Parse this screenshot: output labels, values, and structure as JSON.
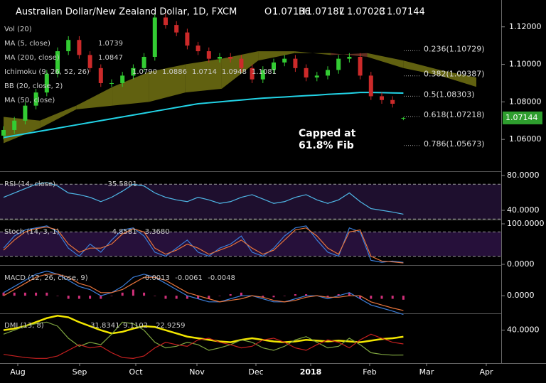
{
  "chart_data": [
    {
      "type": "candlestick",
      "title": "Australian Dollar/New Zealand Dollar, 1D, FXCM",
      "ohlc_labels": [
        "O",
        "H",
        "L",
        "C"
      ],
      "open": [
        1.062,
        1.065,
        1.07,
        1.078,
        1.085,
        1.095,
        1.107,
        1.113,
        1.105,
        1.098,
        1.09,
        1.09,
        1.094,
        1.098,
        1.104,
        1.125,
        1.121,
        1.117,
        1.11,
        1.107,
        1.103,
        1.104,
        1.103,
        1.098,
        1.092,
        1.097,
        1.101,
        1.103,
        1.098,
        1.093,
        1.094,
        1.097,
        1.103,
        1.104,
        1.094,
        1.083,
        1.081,
        1.07136
      ],
      "high": [
        1.067,
        1.072,
        1.08,
        1.087,
        1.097,
        1.109,
        1.115,
        1.115,
        1.107,
        1.1,
        1.092,
        1.096,
        1.1,
        1.106,
        1.127,
        1.127,
        1.123,
        1.119,
        1.112,
        1.109,
        1.106,
        1.106,
        1.105,
        1.1,
        1.099,
        1.103,
        1.105,
        1.105,
        1.1,
        1.096,
        1.099,
        1.105,
        1.106,
        1.106,
        1.096,
        1.085,
        1.083,
        1.07187
      ],
      "low": [
        1.06,
        1.063,
        1.068,
        1.076,
        1.083,
        1.093,
        1.105,
        1.103,
        1.096,
        1.088,
        1.088,
        1.088,
        1.092,
        1.096,
        1.102,
        1.119,
        1.115,
        1.108,
        1.105,
        1.101,
        1.101,
        1.101,
        1.096,
        1.09,
        1.09,
        1.095,
        1.099,
        1.096,
        1.091,
        1.091,
        1.092,
        1.095,
        1.101,
        1.092,
        1.081,
        1.079,
        1.077,
        1.07023
      ],
      "close": [
        1.065,
        1.07,
        1.078,
        1.085,
        1.095,
        1.107,
        1.113,
        1.105,
        1.098,
        1.09,
        1.09,
        1.094,
        1.098,
        1.104,
        1.125,
        1.121,
        1.117,
        1.11,
        1.107,
        1.103,
        1.104,
        1.103,
        1.098,
        1.092,
        1.097,
        1.101,
        1.103,
        1.098,
        1.093,
        1.094,
        1.097,
        1.103,
        1.104,
        1.094,
        1.083,
        1.081,
        1.079,
        1.07144
      ],
      "up_color": "#33cc33",
      "down_color": "#cc2a2a",
      "ylim": [
        1.0434,
        1.1343
      ],
      "yticks": [
        {
          "value": 1.12,
          "label": "1.12000"
        },
        {
          "value": 1.1,
          "label": "1.10000"
        },
        {
          "value": 1.08,
          "label": "1.08000"
        },
        {
          "value": 1.06,
          "label": "1.06000"
        }
      ],
      "indicators": [
        {
          "name": "Vol (20)",
          "values_text": []
        },
        {
          "name": "MA (5, close)",
          "values_text": [
            "1.0739"
          ]
        },
        {
          "name": "MA (200, close)",
          "values_text": [
            "1.0847"
          ]
        },
        {
          "name": "Ichimoku (9, 26, 52, 26)",
          "values_text": [
            "1.0790",
            "1.0886",
            "1.0714",
            "1.0948",
            "1.1081"
          ]
        },
        {
          "name": "BB (20, close, 2)",
          "values_text": []
        },
        {
          "name": "MA (50, close)",
          "values_text": []
        }
      ],
      "ma200": {
        "color": "#22d3e6",
        "values": [
          1.061,
          1.062,
          1.063,
          1.064,
          1.065,
          1.066,
          1.067,
          1.068,
          1.069,
          1.07,
          1.071,
          1.072,
          1.073,
          1.074,
          1.075,
          1.076,
          1.077,
          1.078,
          1.079,
          1.0795,
          1.08,
          1.0805,
          1.081,
          1.0815,
          1.082,
          1.0823,
          1.0826,
          1.083,
          1.0833,
          1.0836,
          1.084,
          1.0843,
          1.0846,
          1.085,
          1.085,
          1.0849,
          1.0848,
          1.0847
        ]
      },
      "cloud": {
        "span_a": [
          1.072,
          1.07,
          1.078,
          1.088,
          1.096,
          1.1,
          1.103,
          1.107,
          1.107,
          1.105,
          1.106,
          1.102,
          1.097,
          1.093
        ],
        "span_b": [
          1.058,
          1.066,
          1.076,
          1.078,
          1.08,
          1.085,
          1.087,
          1.102,
          1.106,
          1.106,
          1.104,
          1.098,
          1.094,
          1.088
        ],
        "up_color": "#6b6b12",
        "down_color": "#6e3426"
      },
      "fib": [
        {
          "label": "0.236(1.10729)",
          "value": 1.10729
        },
        {
          "label": "0.382(1.09387)",
          "value": 1.09387
        },
        {
          "label": "0.5(1.08303)",
          "value": 1.08303
        },
        {
          "label": "0.618(1.07218)",
          "value": 1.07218
        },
        {
          "label": "0.786(1.05673)",
          "value": 1.05673
        }
      ],
      "annotation": [
        "Capped at",
        "61.8% Fib"
      ],
      "x_labels": [
        "Aug",
        "Sep",
        "Oct",
        "Nov",
        "Dec",
        "2018",
        "Feb",
        "Mar",
        "Apr"
      ]
    },
    {
      "type": "line",
      "title": "RSI (14, close)",
      "legend_values": [
        "35.5801"
      ],
      "series": [
        {
          "color": "#4fb8e8",
          "values": [
            55,
            60,
            65,
            70,
            72,
            68,
            60,
            58,
            55,
            50,
            55,
            62,
            70,
            68,
            60,
            55,
            52,
            50,
            55,
            52,
            48,
            50,
            55,
            58,
            53,
            48,
            50,
            55,
            58,
            52,
            48,
            52,
            60,
            50,
            42,
            40,
            38,
            35.5801
          ]
        }
      ],
      "ylim": [
        30.2,
        83.3
      ],
      "yticks": [
        {
          "value": 80,
          "label": "80.0000"
        },
        {
          "value": 40,
          "label": "40.0000"
        }
      ],
      "bands": [
        70,
        30
      ],
      "band_fill": "#1e0f2e"
    },
    {
      "type": "line",
      "title": "Stoch (14, 3, 1)",
      "legend_values": [
        "4.8581",
        "3.3680"
      ],
      "series": [
        {
          "color": "#3b7dd8",
          "values": [
            40,
            70,
            85,
            90,
            95,
            80,
            40,
            20,
            50,
            30,
            60,
            85,
            90,
            70,
            30,
            20,
            40,
            60,
            30,
            20,
            40,
            50,
            70,
            30,
            20,
            40,
            70,
            90,
            95,
            60,
            30,
            20,
            90,
            80,
            10,
            5,
            8,
            4.8581
          ]
        },
        {
          "color": "#e8743b",
          "values": [
            35,
            60,
            80,
            88,
            92,
            85,
            50,
            30,
            40,
            40,
            50,
            75,
            88,
            80,
            40,
            25,
            35,
            50,
            40,
            25,
            35,
            45,
            60,
            40,
            25,
            35,
            60,
            85,
            90,
            70,
            40,
            25,
            80,
            85,
            20,
            8,
            6,
            3.368
          ]
        }
      ],
      "ylim": [
        0,
        108.8
      ],
      "yticks": [
        {
          "value": 100,
          "label": "100.0000"
        },
        {
          "value": 0,
          "label": "0.0000"
        }
      ],
      "bands": [
        80,
        20
      ],
      "band_fill": "#26103a"
    },
    {
      "type": "line",
      "title": "MACD (12, 26, close, 9)",
      "legend_values": [
        "-0.0013",
        "-0.0061",
        "-0.0048"
      ],
      "histogram": {
        "color": "#d0307a",
        "values": [
          0.001,
          0.001,
          0.001,
          0.001,
          0.001,
          0,
          -0.001,
          -0.001,
          -0.001,
          -0.001,
          0,
          0.001,
          0.002,
          0.001,
          0,
          -0.001,
          -0.001,
          -0.001,
          -0.001,
          -0.001,
          0,
          0.0005,
          0.001,
          0,
          -0.0005,
          -0.0005,
          0,
          0.0005,
          0.0005,
          0,
          -0.0005,
          0.0005,
          0.001,
          -0.001,
          -0.001,
          -0.001,
          -0.001,
          -0.0013
        ]
      },
      "series": [
        {
          "color": "#3b7dd8",
          "values": [
            0.001,
            0.003,
            0.005,
            0.007,
            0.008,
            0.007,
            0.005,
            0.003,
            0.002,
            0.0,
            0.001,
            0.003,
            0.006,
            0.007,
            0.006,
            0.004,
            0.002,
            0.0,
            -0.001,
            -0.002,
            -0.002,
            -0.001,
            0.0,
            0.0,
            -0.001,
            -0.002,
            -0.002,
            -0.001,
            0.0,
            0.0,
            -0.001,
            0.0,
            0.001,
            -0.001,
            -0.003,
            -0.004,
            -0.005,
            -0.0061
          ]
        },
        {
          "color": "#e8743b",
          "values": [
            0.0,
            0.002,
            0.004,
            0.006,
            0.007,
            0.007,
            0.006,
            0.004,
            0.003,
            0.001,
            0.001,
            0.002,
            0.004,
            0.006,
            0.006,
            0.005,
            0.003,
            0.001,
            0.0,
            -0.001,
            -0.002,
            -0.0015,
            -0.001,
            0.0,
            -0.0005,
            -0.0015,
            -0.002,
            -0.0015,
            -0.0005,
            0.0,
            -0.0005,
            -0.0005,
            0.0,
            0.0,
            -0.002,
            -0.003,
            -0.004,
            -0.0048
          ]
        }
      ],
      "ylim": [
        -0.0055,
        0.0095
      ],
      "yticks": [
        {
          "value": 0,
          "label": "0.0000"
        }
      ]
    },
    {
      "type": "line",
      "title": "DMI (13, 8)",
      "legend_values": [
        "31.8341",
        "9.1102",
        "22.9259"
      ],
      "series": [
        {
          "color": "#f2e600",
          "width": 2.5,
          "values": [
            40,
            42,
            45,
            50,
            55,
            58,
            56,
            50,
            45,
            40,
            36,
            38,
            42,
            45,
            44,
            40,
            36,
            32,
            30,
            28,
            26,
            25,
            28,
            30,
            28,
            26,
            25,
            26,
            28,
            27,
            26,
            27,
            26,
            25,
            27,
            29,
            30,
            31.8341
          ]
        },
        {
          "color": "#7fa640",
          "values": [
            35,
            40,
            45,
            48,
            50,
            45,
            30,
            20,
            25,
            22,
            35,
            50,
            48,
            40,
            25,
            18,
            20,
            25,
            22,
            15,
            18,
            22,
            28,
            25,
            18,
            15,
            20,
            28,
            32,
            25,
            18,
            20,
            30,
            22,
            12,
            10,
            9,
            9.1102
          ]
        },
        {
          "color": "#c62020",
          "values": [
            10,
            8,
            6,
            5,
            5,
            8,
            15,
            22,
            18,
            20,
            12,
            6,
            5,
            8,
            18,
            25,
            22,
            20,
            28,
            30,
            25,
            22,
            18,
            20,
            28,
            30,
            25,
            18,
            15,
            22,
            28,
            25,
            18,
            28,
            35,
            30,
            25,
            22.9259
          ]
        }
      ],
      "ylim": [
        0,
        60
      ],
      "yticks": [
        {
          "value": 40,
          "label": "40.0000"
        }
      ]
    }
  ]
}
